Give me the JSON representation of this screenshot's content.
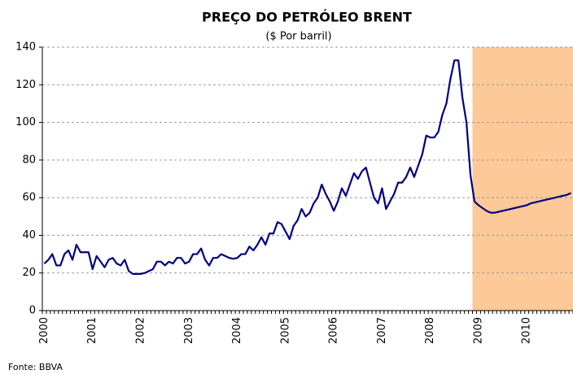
{
  "chart_data": {
    "type": "line",
    "title": "PREÇO DO PETRÓLEO BRENT",
    "subtitle": "($ Por barril)",
    "source": "Fonte: BBVA",
    "categories": [
      "2000",
      null,
      null,
      null,
      null,
      null,
      null,
      null,
      null,
      null,
      null,
      null,
      "2001",
      null,
      null,
      null,
      null,
      null,
      null,
      null,
      null,
      null,
      null,
      null,
      "2002",
      null,
      null,
      null,
      null,
      null,
      null,
      null,
      null,
      null,
      null,
      null,
      "2003",
      null,
      null,
      null,
      null,
      null,
      null,
      null,
      null,
      null,
      null,
      null,
      "2004",
      null,
      null,
      null,
      null,
      null,
      null,
      null,
      null,
      null,
      null,
      null,
      "2005",
      null,
      null,
      null,
      null,
      null,
      null,
      null,
      null,
      null,
      null,
      null,
      "2006",
      null,
      null,
      null,
      null,
      null,
      null,
      null,
      null,
      null,
      null,
      null,
      "2007",
      null,
      null,
      null,
      null,
      null,
      null,
      null,
      null,
      null,
      null,
      null,
      "2008",
      null,
      null,
      null,
      null,
      null,
      null,
      null,
      null,
      null,
      null,
      null,
      "2009",
      null,
      null,
      null,
      null,
      null,
      null,
      null,
      null,
      null,
      null,
      null,
      "2010",
      null,
      null,
      null,
      null,
      null,
      null,
      null,
      null,
      null,
      null,
      null
    ],
    "series": [
      {
        "name": "Brent",
        "color": "#000080",
        "values": [
          25,
          27,
          30,
          24,
          24,
          30,
          32,
          27,
          35,
          31,
          31,
          31,
          22,
          29,
          26,
          23,
          27,
          28,
          25,
          24,
          27,
          21,
          19.5,
          19.5,
          19.5,
          20,
          21,
          22,
          26,
          26,
          24,
          26,
          25,
          28,
          28,
          25,
          26,
          30,
          30,
          33,
          27,
          24,
          28,
          28,
          30,
          29,
          28,
          27.5,
          28,
          30,
          30,
          34,
          32,
          35,
          39,
          35,
          41,
          41,
          47,
          46,
          42,
          38,
          45,
          48,
          54,
          50,
          52,
          57,
          60,
          67,
          62,
          58,
          53,
          58,
          65,
          61,
          67,
          73,
          70,
          74,
          76,
          68,
          60,
          57,
          65,
          54,
          58,
          62,
          68,
          68,
          71,
          76,
          71,
          77,
          83,
          93,
          92,
          92,
          95,
          104,
          110,
          123,
          133,
          133,
          113,
          100,
          72,
          58,
          56,
          54.5,
          53,
          52,
          52,
          52.5,
          53,
          53.5,
          54,
          54.5,
          55,
          55.5,
          56,
          57,
          57.5,
          58,
          58.5,
          59,
          59.5,
          60,
          60.5,
          61,
          61.5,
          62.5
        ]
      }
    ],
    "highlight": {
      "from": 107,
      "color": "#fdc998"
    },
    "ylim": [
      0,
      140
    ],
    "yticks": [
      0,
      20,
      40,
      60,
      80,
      100,
      120,
      140
    ],
    "grid": true
  }
}
